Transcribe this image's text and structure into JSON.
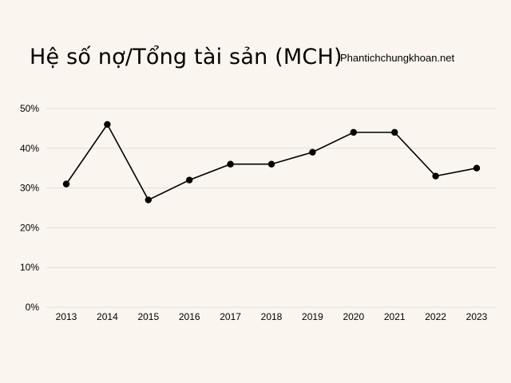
{
  "title": "Hệ số nợ/Tổng tài sản (MCH)",
  "source": "Phantichchungkhoan.net",
  "colors": {
    "background": "#faf5ee",
    "line": "#000000",
    "grid": "#e3ddd4"
  },
  "chart_data": {
    "type": "line",
    "title": "Hệ số nợ/Tổng tài sản (MCH)",
    "xlabel": "",
    "ylabel": "",
    "categories": [
      "2013",
      "2014",
      "2015",
      "2016",
      "2017",
      "2018",
      "2019",
      "2020",
      "2021",
      "2022",
      "2023"
    ],
    "series": [
      {
        "values": [
          31,
          46,
          27,
          32,
          36,
          36,
          39,
          44,
          44,
          33,
          35
        ]
      }
    ],
    "ylim": [
      0,
      50
    ],
    "yticks": [
      0,
      10,
      20,
      30,
      40,
      50
    ],
    "ytick_labels": [
      "0%",
      "10%",
      "20%",
      "30%",
      "40%",
      "50%"
    ],
    "grid": true,
    "legend": "none",
    "markers": true
  }
}
